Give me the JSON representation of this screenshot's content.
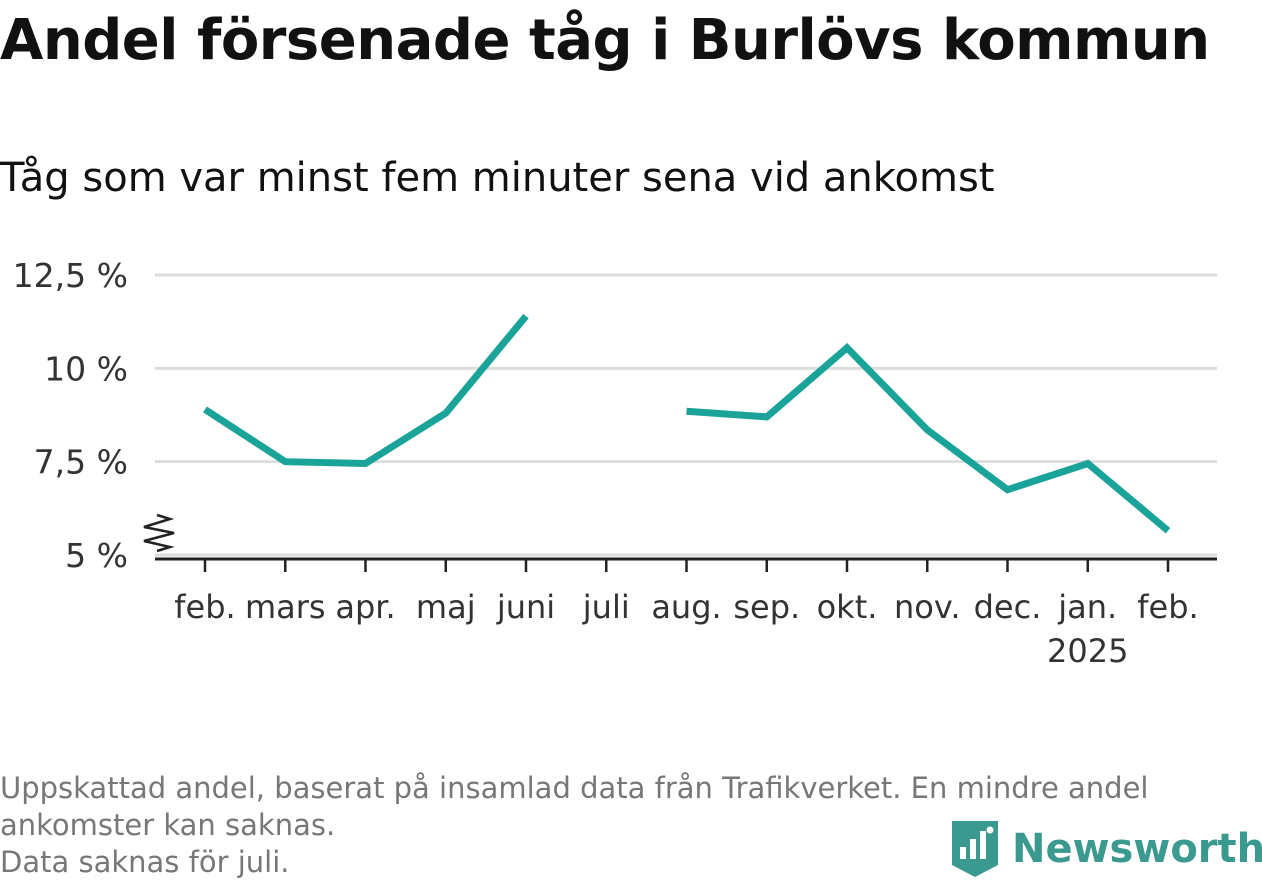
{
  "title": "Andel försenade tåg i Burlövs kommun",
  "subtitle": "Tåg som var minst fem minuter sena vid ankomst",
  "notes": [
    "Uppskattad andel, baserat på insamlad data från Trafikverket. En mindre andel",
    "ankomster kan saknas.",
    "Data saknas för juli."
  ],
  "brand": {
    "name": "Newsworthy",
    "color": "#3a9a90",
    "icon": "newsworthy-logo-icon"
  },
  "colors": {
    "line": "#1aa399",
    "grid": "#dddddd",
    "axis": "#222222"
  },
  "chart_data": {
    "type": "line",
    "title": "Andel försenade tåg i Burlövs kommun",
    "subtitle": "Tåg som var minst fem minuter sena vid ankomst",
    "categories": [
      "feb.",
      "mars",
      "apr.",
      "maj",
      "juni",
      "juli",
      "aug.",
      "sep.",
      "okt.",
      "nov.",
      "dec.",
      "jan.",
      "feb."
    ],
    "category_sublabels": [
      "",
      "",
      "",
      "",
      "",
      "",
      "",
      "",
      "",
      "",
      "",
      "2025",
      ""
    ],
    "series": [
      {
        "values": [
          8.9,
          7.5,
          7.45,
          8.8,
          11.4,
          null,
          8.85,
          8.7,
          10.55,
          8.35,
          6.75,
          7.45,
          5.65
        ]
      }
    ],
    "ylim": [
      5,
      12.5
    ],
    "yticks": [
      5,
      7.5,
      10,
      12.5
    ],
    "ytick_labels": [
      "5 %",
      "7,5 %",
      "10 %",
      "12,5 %"
    ],
    "axis_break": true,
    "grid": true,
    "xlabel": "",
    "ylabel": ""
  }
}
